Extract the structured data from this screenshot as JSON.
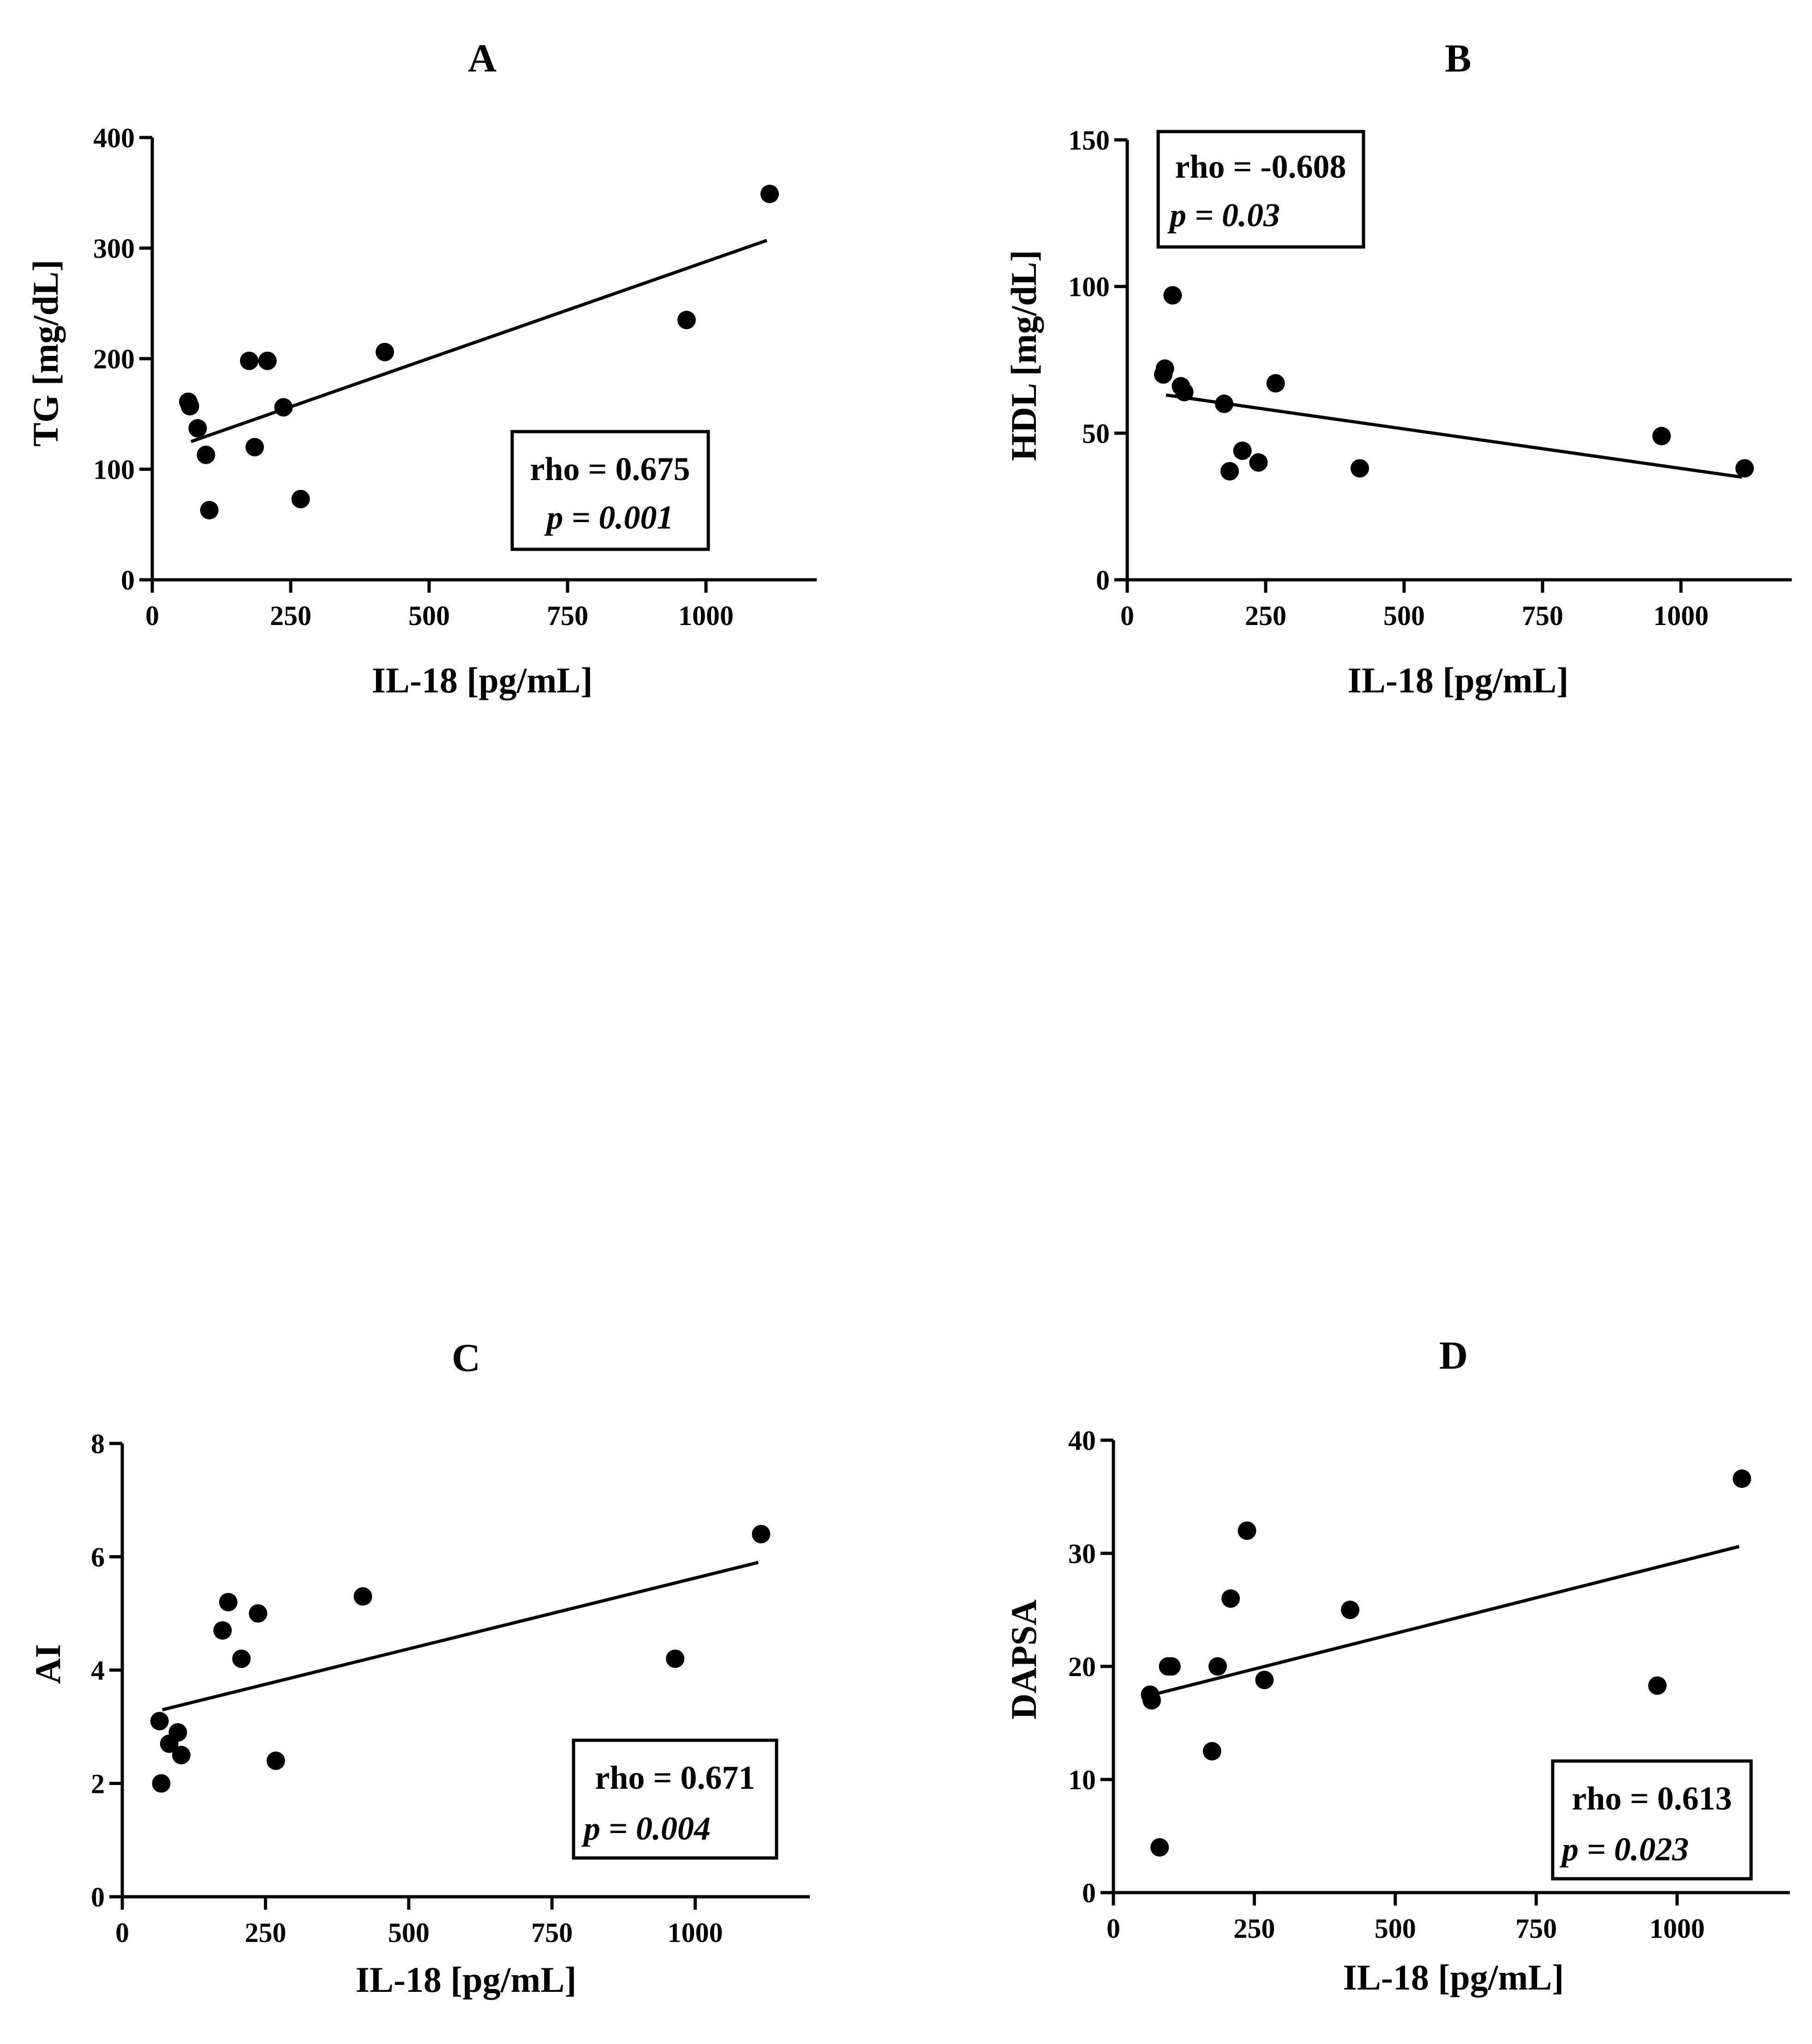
{
  "chart_data": [
    {
      "type": "scatter",
      "title": "A",
      "xlabel": "IL-18 [pg/mL]",
      "ylabel": "TG [mg/dL]",
      "xlim": [
        0,
        1200
      ],
      "ylim": [
        0,
        400
      ],
      "xticks": [
        "0",
        "250",
        "500",
        "750",
        "1000"
      ],
      "yticks": [
        "0",
        "100",
        "200",
        "300",
        "400"
      ],
      "x": [
        65,
        68,
        82,
        97,
        103,
        175,
        185,
        208,
        237,
        268,
        420,
        965,
        1115
      ],
      "y": [
        161,
        157,
        137,
        113,
        63,
        198,
        120,
        198,
        156,
        73,
        206,
        235,
        349
      ],
      "fit": {
        "x": [
          70,
          1110
        ],
        "y": [
          125,
          307
        ]
      },
      "annotation": {
        "rho": "rho = 0.675",
        "p": "p = 0.001"
      },
      "annotation_position": "lower-right"
    },
    {
      "type": "scatter",
      "title": "B",
      "xlabel": "IL-18 [pg/mL]",
      "ylabel": "HDL [mg/dL]",
      "xlim": [
        0,
        1200
      ],
      "ylim": [
        0,
        150
      ],
      "xticks": [
        "0",
        "250",
        "500",
        "750",
        "1000"
      ],
      "yticks": [
        "0",
        "50",
        "100",
        "150"
      ],
      "x": [
        65,
        68,
        82,
        97,
        103,
        175,
        185,
        208,
        237,
        268,
        420,
        965,
        1115
      ],
      "y": [
        70,
        72,
        97,
        66,
        64,
        60,
        37,
        44,
        40,
        67,
        38,
        49,
        38
      ],
      "fit": {
        "x": [
          70,
          1110
        ],
        "y": [
          63,
          35
        ]
      },
      "annotation": {
        "rho": "rho = -0.608",
        "p": "p = 0.03"
      },
      "annotation_position": "top-left"
    },
    {
      "type": "scatter",
      "title": "C",
      "xlabel": "IL-18 [pg/mL]",
      "ylabel": "AI",
      "xlim": [
        0,
        1200
      ],
      "ylim": [
        0,
        8
      ],
      "xticks": [
        "0",
        "250",
        "500",
        "750",
        "1000"
      ],
      "yticks": [
        "0",
        "2",
        "4",
        "6",
        "8"
      ],
      "x": [
        65,
        68,
        82,
        97,
        103,
        175,
        185,
        208,
        237,
        268,
        420,
        965,
        1115
      ],
      "y": [
        3.1,
        2.0,
        2.7,
        2.9,
        2.5,
        4.7,
        5.2,
        4.2,
        5.0,
        2.4,
        5.3,
        4.2,
        6.4
      ],
      "fit": {
        "x": [
          70,
          1110
        ],
        "y": [
          3.3,
          5.9
        ]
      },
      "annotation": {
        "rho": "rho = 0.671",
        "p": "p = 0.004"
      },
      "annotation_position": "lower-right"
    },
    {
      "type": "scatter",
      "title": "D",
      "xlabel": "IL-18 [pg/mL]",
      "ylabel": "DAPSA",
      "xlim": [
        0,
        1200
      ],
      "ylim": [
        0,
        40
      ],
      "xticks": [
        "0",
        "250",
        "500",
        "750",
        "1000"
      ],
      "yticks": [
        "0",
        "10",
        "20",
        "30",
        "40"
      ],
      "x": [
        65,
        68,
        82,
        97,
        103,
        175,
        185,
        208,
        237,
        268,
        420,
        965,
        1115
      ],
      "y": [
        17.5,
        17.0,
        4.0,
        20.0,
        20.0,
        12.5,
        20.0,
        26.0,
        32.0,
        18.8,
        25.0,
        18.3,
        36.6
      ],
      "fit": {
        "x": [
          70,
          1110
        ],
        "y": [
          17.5,
          30.6
        ]
      },
      "annotation": {
        "rho": "rho = 0.613",
        "p": "p = 0.023"
      },
      "annotation_position": "lower-right"
    }
  ]
}
